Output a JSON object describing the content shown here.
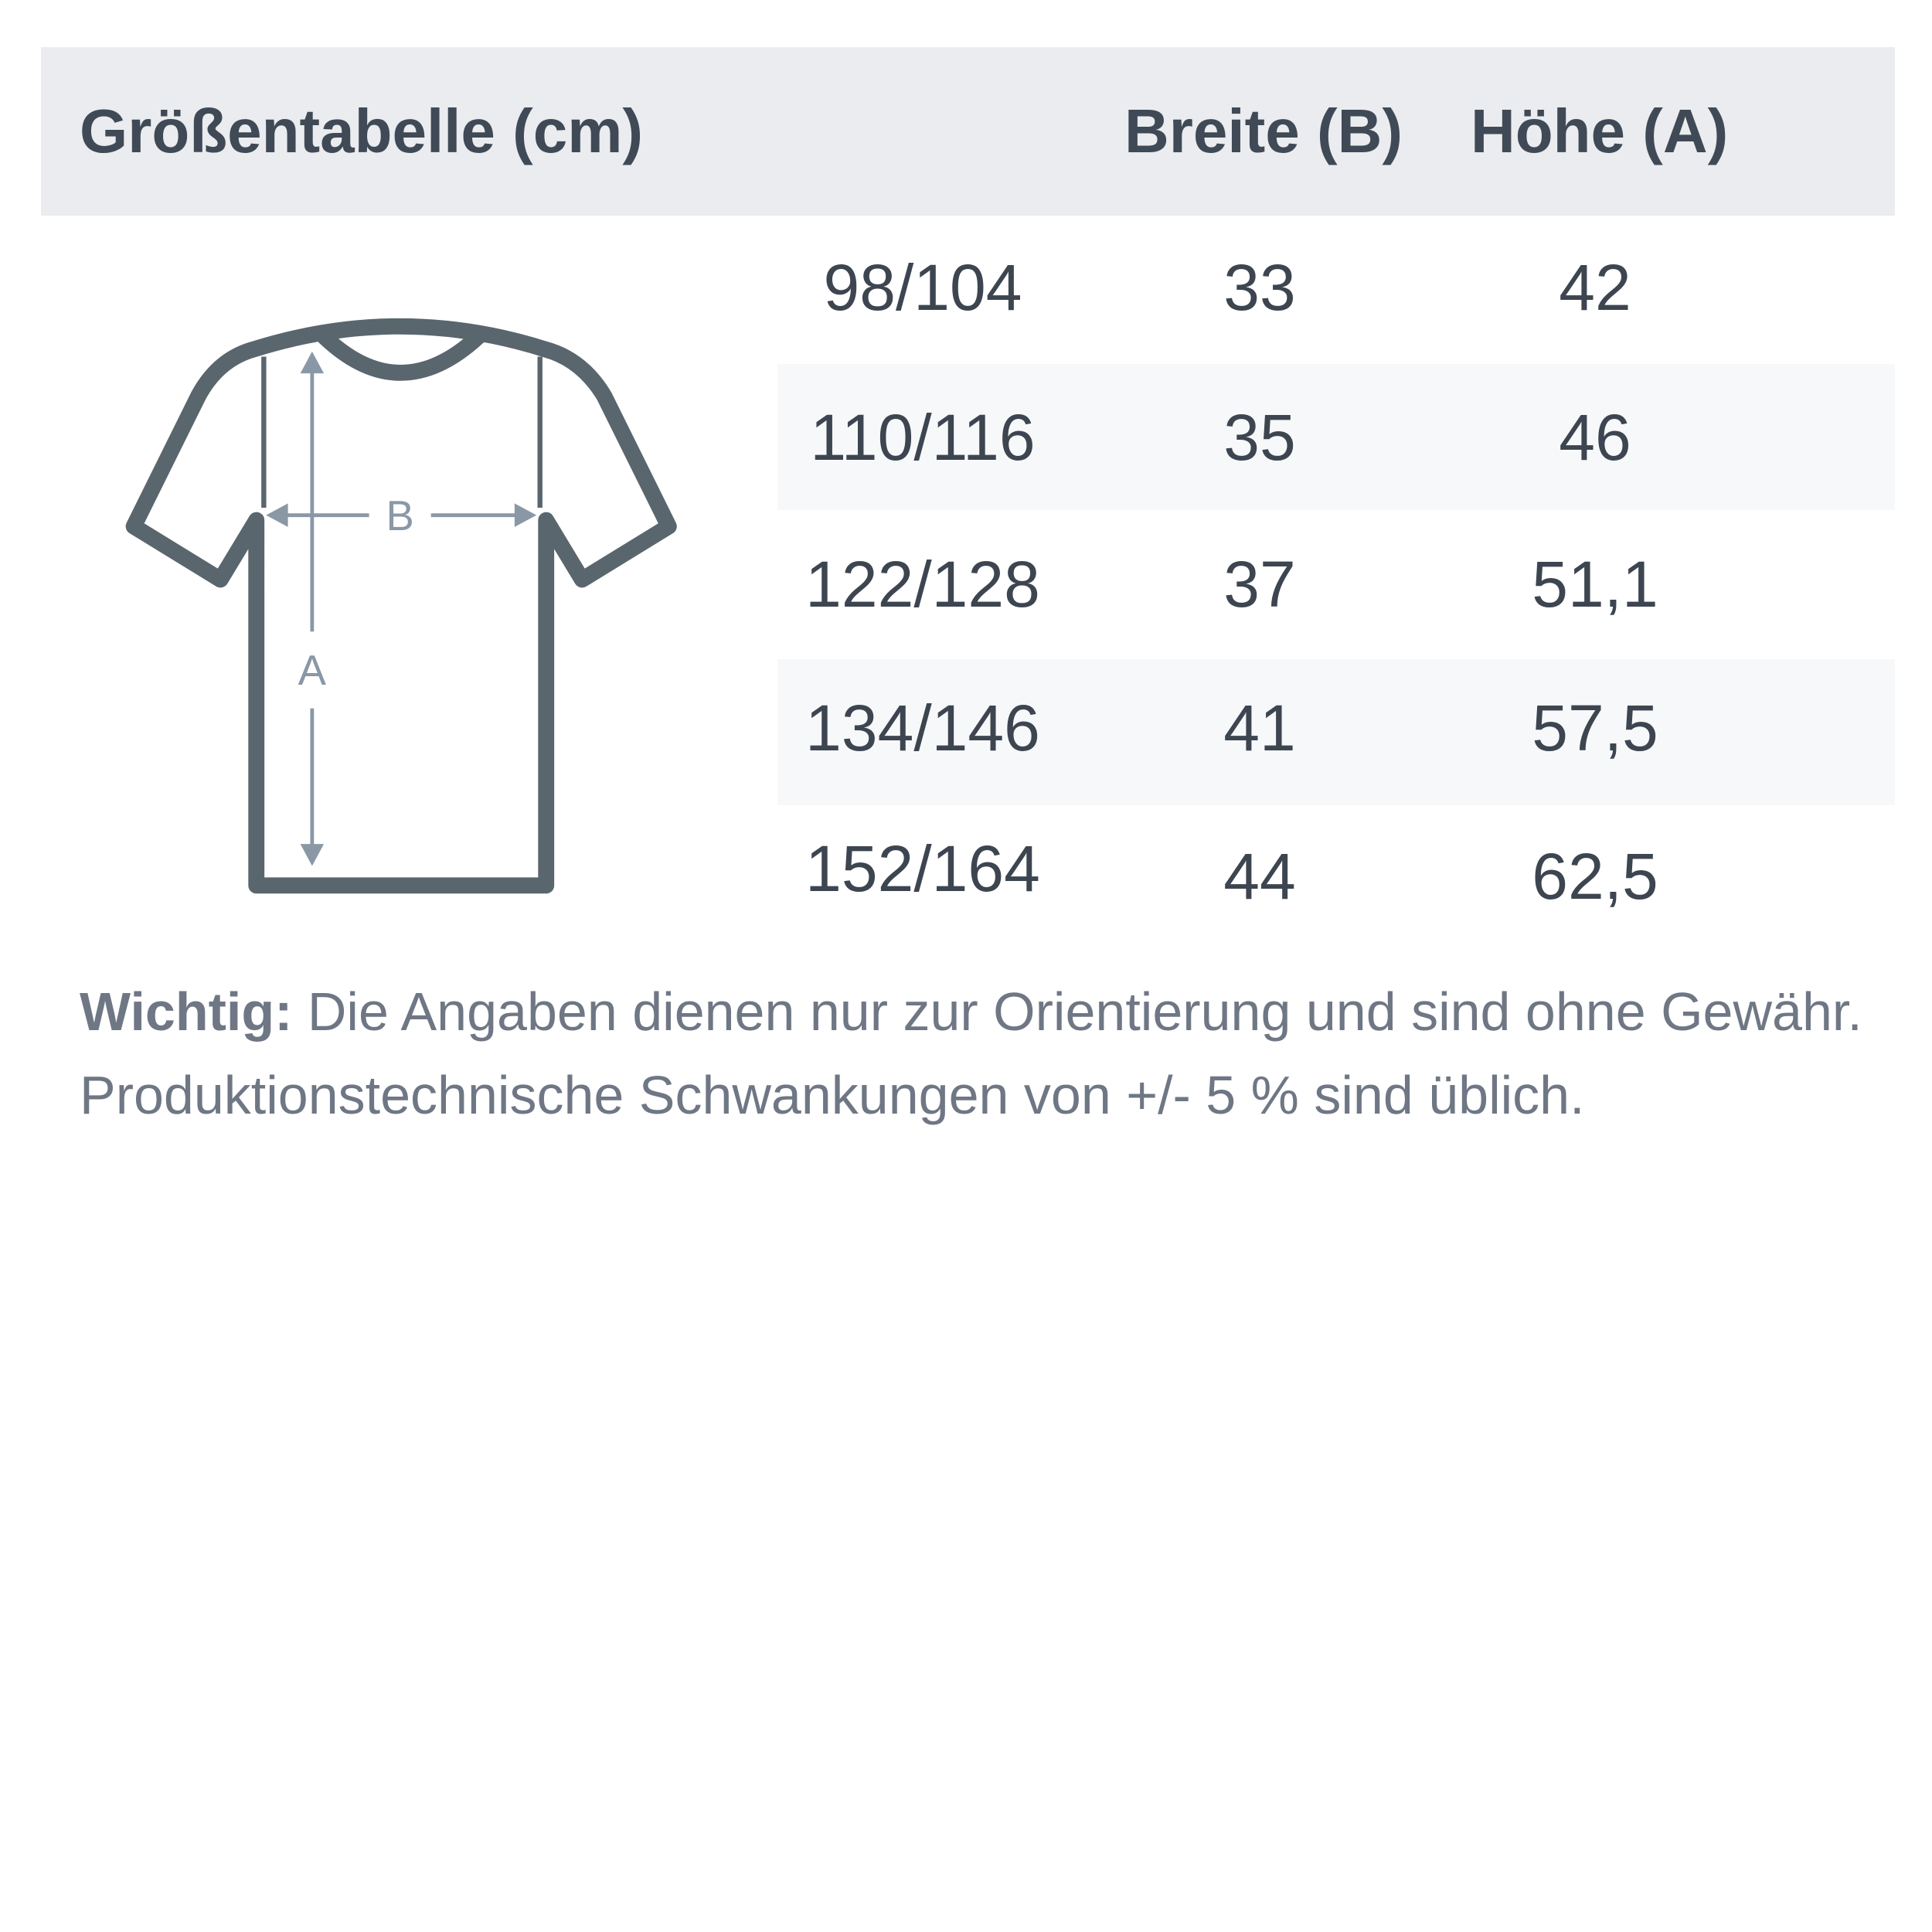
{
  "header": {
    "title": "Größentabelle (cm)",
    "col_width": "Breite (B)",
    "col_height": "Höhe (A)"
  },
  "rows": [
    {
      "size": "98/104",
      "width": "33",
      "height": "42"
    },
    {
      "size": "110/116",
      "width": "35",
      "height": "46"
    },
    {
      "size": "122/128",
      "width": "37",
      "height": "51,1"
    },
    {
      "size": "134/146",
      "width": "41",
      "height": "57,5"
    },
    {
      "size": "152/164",
      "width": "44",
      "height": "62,5"
    }
  ],
  "diagram": {
    "label_width": "B",
    "label_height": "A",
    "icon": "tshirt-measurement-icon",
    "outline_color": "#5a666e",
    "arrow_color": "#8a98a6"
  },
  "note": {
    "label": "Wichtig:",
    "text": " Die Angaben dienen nur zur Orientierung und sind ohne Gewähr. Produktionstechnische Schwankungen von +/- 5 % sind üblich."
  }
}
